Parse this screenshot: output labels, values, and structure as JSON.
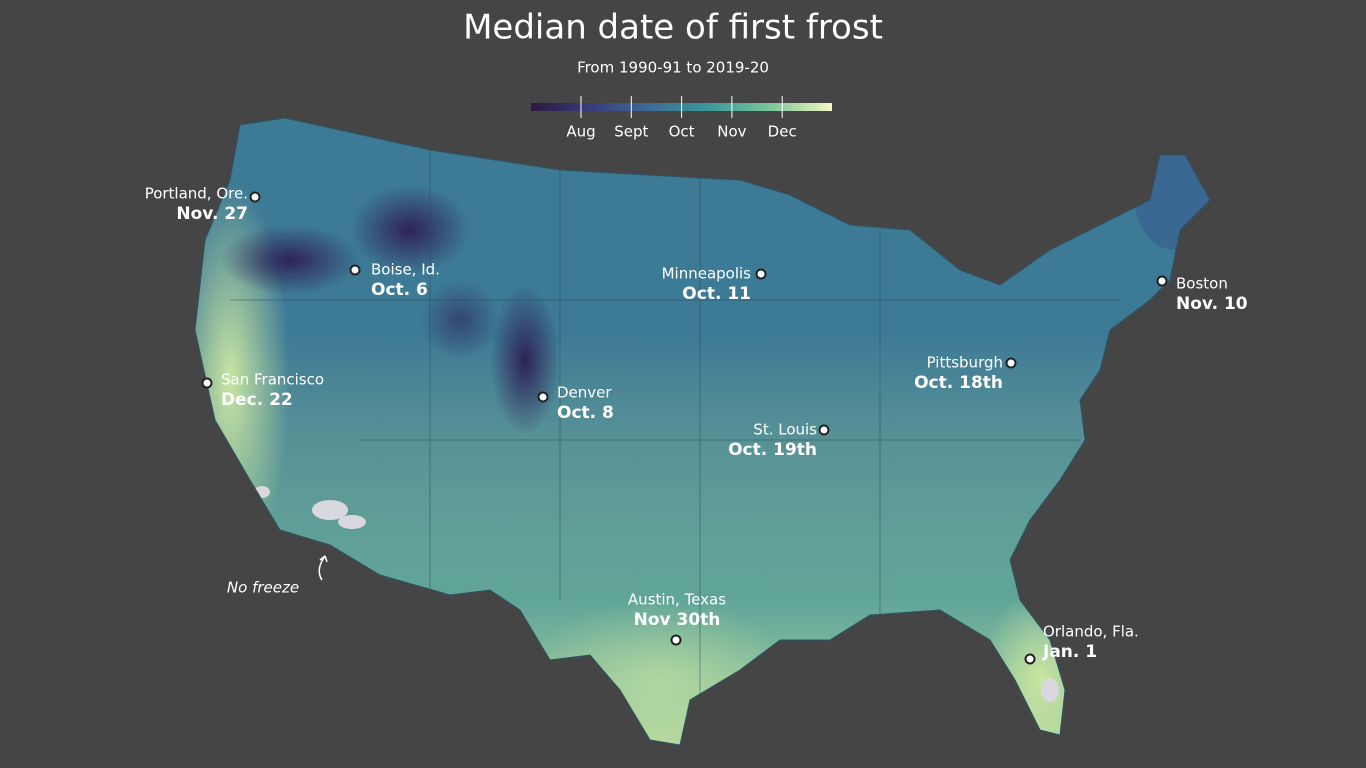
{
  "header": {
    "title": "Median date of first frost",
    "subtitle": "From 1990-91 to 2019-20"
  },
  "legend": {
    "labels": [
      "Aug",
      "Sept",
      "Oct",
      "Nov",
      "Dec"
    ]
  },
  "cities": [
    {
      "name": "Portland, Ore.",
      "date": "Nov. 27"
    },
    {
      "name": "Boise, Id.",
      "date": "Oct. 6"
    },
    {
      "name": "Minneapolis",
      "date": "Oct. 11"
    },
    {
      "name": "Boston",
      "date": "Nov. 10"
    },
    {
      "name": "San Francisco",
      "date": "Dec. 22"
    },
    {
      "name": "Denver",
      "date": "Oct. 8"
    },
    {
      "name": "Pittsburgh",
      "date": "Oct. 18th"
    },
    {
      "name": "St. Louis",
      "date": "Oct. 19th"
    },
    {
      "name": "Austin, Texas",
      "date": "Nov 30th"
    },
    {
      "name": "Orlando, Fla.",
      "date": "Jan. 1"
    }
  ],
  "annotation": "No freeze"
}
